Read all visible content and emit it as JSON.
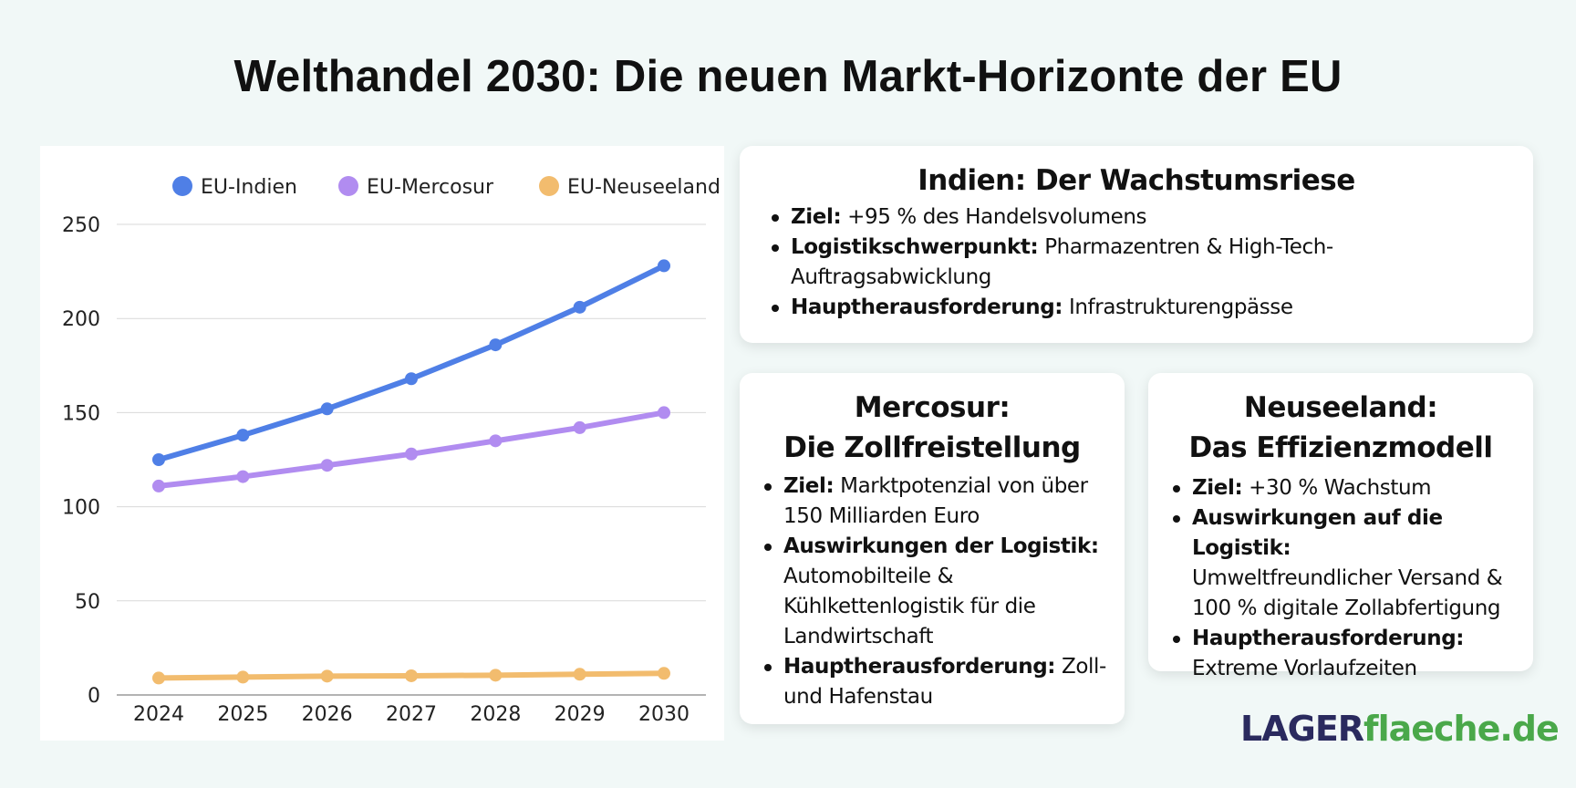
{
  "title": "Welthandel 2030: Die neuen Markt-Horizonte der EU",
  "chart_data": {
    "type": "line",
    "x": [
      "2024",
      "2025",
      "2026",
      "2027",
      "2028",
      "2029",
      "2030"
    ],
    "ylim": [
      0,
      250
    ],
    "yticks": [
      0,
      50,
      100,
      150,
      200,
      250
    ],
    "grid": true,
    "legend_position": "top",
    "series": [
      {
        "name": "EU-Indien",
        "color": "#4f7fe6",
        "values": [
          125,
          138,
          152,
          168,
          186,
          206,
          228
        ]
      },
      {
        "name": "EU-Mercosur",
        "color": "#b18cf0",
        "values": [
          111,
          116,
          122,
          128,
          135,
          142,
          150
        ]
      },
      {
        "name": "EU-Neuseeland",
        "color": "#f2bc6e",
        "values": [
          9,
          9.5,
          10,
          10.2,
          10.5,
          11,
          11.5
        ]
      }
    ]
  },
  "cards": {
    "india": {
      "title": "Indien: Der Wachstumsriese",
      "items": [
        {
          "label": "Ziel:",
          "lines": [
            "+95 % des Handelsvolumens"
          ]
        },
        {
          "label": "Logistikschwerpunkt:",
          "lines": [
            "Pharmazentren & High-Tech-",
            "Auftragsabwicklung"
          ]
        },
        {
          "label": "Hauptherausforderung:",
          "lines": [
            "Infrastrukturengpässe"
          ]
        }
      ]
    },
    "mercosur": {
      "title_line1": "Mercosur:",
      "title_line2": "Die Zollfreistellung",
      "items": [
        {
          "label": "Ziel:",
          "lines": [
            "Marktpotenzial von über",
            "150 Milliarden Euro"
          ]
        },
        {
          "label": "Auswirkungen der Logistik:",
          "lines": [
            "Automobilteile &",
            "Kühlkettenlogistik für die",
            "Landwirtschaft"
          ]
        },
        {
          "label": "Hauptherausforderung:",
          "lines": [
            "Zoll-",
            "und Hafenstau"
          ]
        }
      ]
    },
    "nz": {
      "title_line1": "Neuseeland:",
      "title_line2": "Das Effizienzmodell",
      "items": [
        {
          "label": "Ziel:",
          "lines": [
            "+30 % Wachstum"
          ]
        },
        {
          "label": "Auswirkungen auf die Logistik:",
          "lines": [
            "Umweltfreundlicher Versand &",
            "100 % digitale Zollabfertigung"
          ]
        },
        {
          "label": "Hauptherausforderung:",
          "lines": [
            "Extreme Vorlaufzeiten"
          ]
        }
      ]
    }
  },
  "logo": {
    "part1": "LAGER",
    "part2": "flaeche.de"
  }
}
